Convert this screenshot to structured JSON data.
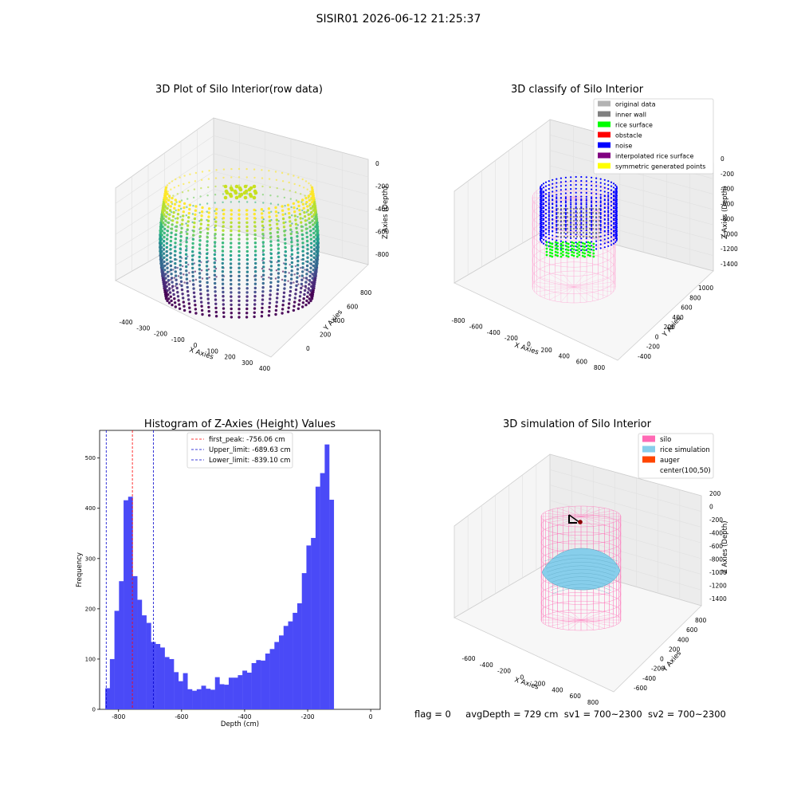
{
  "figure_title": "SISIR01 2026-06-12 21:25:37",
  "colors": {
    "hist_bar": "#4a4af7",
    "first_peak_line": "#ff0000",
    "limit_line": "#0000cc",
    "silo": "#ff69b4",
    "rice_simulation": "#87ceeb",
    "auger": "#ff4500",
    "original_data": "#b3b3b3",
    "inner_wall": "#808080",
    "rice_surface": "#00ff00",
    "obstacle": "#ff0000",
    "noise": "#0000ff",
    "interpolated_rice_surface": "#800080",
    "symmetric_generated_points": "#ffff00"
  },
  "status_bar": {
    "flag": "flag = 0",
    "avg_depth": "avgDepth = 729 cm",
    "sv1": "sv1 = 700~2300",
    "sv2": "sv2 = 700~2300"
  },
  "chart_data": [
    {
      "type": "scatter",
      "title": "3D Plot of Silo Interior(row data)",
      "xlabel": "X Axies",
      "ylabel": "Y Axies",
      "zlabel": "Z Axies (Depth)",
      "x_ticks": [
        "-400",
        "-300",
        "-200",
        "-100",
        "0",
        "100",
        "200",
        "300",
        "400"
      ],
      "y_ticks": [
        "0",
        "200",
        "400",
        "600",
        "800"
      ],
      "z_ticks": [
        "0",
        "-200",
        "-400",
        "-600",
        "-800"
      ],
      "colormap": "viridis"
    },
    {
      "type": "scatter",
      "title": "3D classify of Silo Interior",
      "xlabel": "X Axies",
      "ylabel": "Y Axies",
      "zlabel": "Z Axies (Depth)",
      "x_ticks": [
        "-800",
        "-600",
        "-400",
        "-200",
        "0",
        "200",
        "400",
        "600",
        "800"
      ],
      "y_ticks": [
        "-400",
        "-200",
        "0",
        "200",
        "400",
        "600",
        "800",
        "1000"
      ],
      "z_ticks": [
        "0",
        "-200",
        "-400",
        "-600",
        "-800",
        "-1000",
        "-1200",
        "-1400"
      ],
      "legend": [
        "original data",
        "inner wall",
        "rice surface",
        "obstacle",
        "noise",
        "interpolated rice surface",
        "symmetric generated points"
      ],
      "legend_placement": "top-right"
    },
    {
      "type": "bar",
      "title": "Histogram of Z-Axies (Height) Values",
      "xlabel": "Depth (cm)",
      "ylabel": "Frequency",
      "xlim": [
        -860,
        30
      ],
      "ylim": [
        0,
        555
      ],
      "x_ticks": [
        -800,
        -600,
        -400,
        -200,
        0
      ],
      "y_ticks": [
        0,
        100,
        200,
        300,
        400,
        500
      ],
      "bins_start": -842,
      "bin_width": 14.5,
      "values": [
        42,
        100,
        196,
        255,
        416,
        423,
        265,
        218,
        187,
        172,
        134,
        130,
        123,
        104,
        100,
        74,
        56,
        72,
        40,
        37,
        40,
        47,
        41,
        39,
        64,
        50,
        49,
        63,
        63,
        68,
        77,
        73,
        92,
        98,
        97,
        111,
        120,
        134,
        147,
        166,
        175,
        192,
        211,
        271,
        326,
        341,
        443,
        470,
        527,
        417
      ],
      "lines": [
        {
          "label": "first_peak: -756.06 cm",
          "x": -756.06,
          "style": "red-dashed"
        },
        {
          "label": "Upper_limit: -689.63 cm",
          "x": -689.63,
          "style": "blue-dashed"
        },
        {
          "label": "Lower_limit: -839.10 cm",
          "x": -839.1,
          "style": "blue-dashed"
        }
      ],
      "grid": false,
      "legend_placement": "top-center"
    },
    {
      "type": "scatter",
      "title": "3D simulation of Silo Interior",
      "xlabel": "X Axies",
      "ylabel": "Y Axies",
      "zlabel": "Z Axies (Depth)",
      "x_ticks": [
        "-600",
        "-400",
        "-200",
        "0",
        "200",
        "400",
        "600",
        "800"
      ],
      "y_ticks": [
        "-600",
        "-400",
        "-200",
        "0",
        "200",
        "400",
        "600",
        "800"
      ],
      "z_ticks": [
        "200",
        "0",
        "-200",
        "-400",
        "-600",
        "-800",
        "-1000",
        "-1200",
        "-1400"
      ],
      "legend": [
        "silo",
        "rice simulation",
        "auger",
        "center(100,50)"
      ],
      "legend_placement": "top-right"
    }
  ]
}
